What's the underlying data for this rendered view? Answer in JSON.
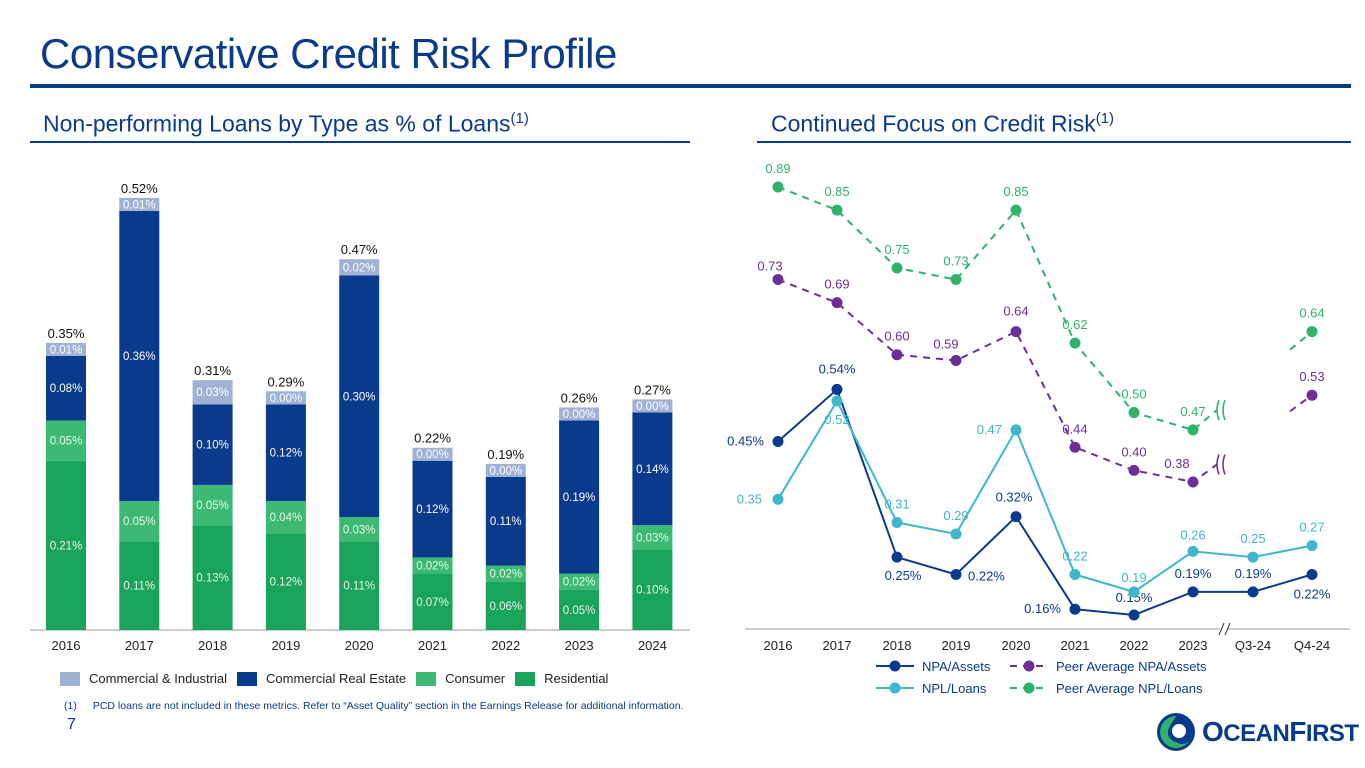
{
  "page": {
    "title": "Conservative Credit Risk Profile",
    "page_number": "7",
    "footnote_marker": "(1)",
    "footnote": "PCD loans are not included in these metrics. Refer to “Asset Quality” section in the Earnings Release for additional information.",
    "logo_text_a": "O",
    "logo_text_b": "CEAN",
    "logo_text_c": "F",
    "logo_text_d": "IRST"
  },
  "left_panel": {
    "title": "Non-performing Loans by Type as % of Loans",
    "title_sup": "(1)"
  },
  "right_panel": {
    "title": "Continued Focus on Credit Risk",
    "title_sup": "(1)"
  },
  "colors": {
    "commercial_industrial": "#9fb2d3",
    "commercial_real_estate": "#0a3a8c",
    "consumer": "#3cba74",
    "residential": "#1aa35a",
    "npa_assets": "#0a3a8c",
    "npl_loans": "#3fb6cc",
    "peer_npa": "#6c2f9a",
    "peer_npl": "#2fb36a"
  },
  "chart_data": [
    {
      "type": "bar",
      "stacked": true,
      "title": "Non-performing Loans by Type as % of Loans",
      "categories": [
        "2016",
        "2017",
        "2018",
        "2019",
        "2020",
        "2021",
        "2022",
        "2023",
        "2024"
      ],
      "series": [
        {
          "name": "Residential",
          "values": [
            0.21,
            0.11,
            0.13,
            0.12,
            0.11,
            0.07,
            0.06,
            0.05,
            0.1
          ],
          "labels": [
            "0.21%",
            "0.11%",
            "0.13%",
            "0.12%",
            "0.11%",
            "0.07%",
            "0.06%",
            "0.05%",
            "0.10%"
          ]
        },
        {
          "name": "Consumer",
          "values": [
            0.05,
            0.05,
            0.05,
            0.04,
            0.03,
            0.02,
            0.02,
            0.02,
            0.03
          ],
          "labels": [
            "0.05%",
            "0.05%",
            "0.05%",
            "0.04%",
            "0.03%",
            "0.02%",
            "0.02%",
            "0.02%",
            "0.03%"
          ]
        },
        {
          "name": "Commercial Real Estate",
          "values": [
            0.08,
            0.36,
            0.1,
            0.12,
            0.3,
            0.12,
            0.11,
            0.19,
            0.14
          ],
          "labels": [
            "0.08%",
            "0.36%",
            "0.10%",
            "0.12%",
            "0.30%",
            "0.12%",
            "0.11%",
            "0.19%",
            "0.14%"
          ]
        },
        {
          "name": "Commercial & Industrial",
          "values": [
            0.01,
            0.01,
            0.03,
            0.0,
            0.02,
            0.0,
            0.0,
            0.0,
            0.0
          ],
          "labels": [
            "0.01%",
            "0.01%",
            "0.03%",
            "0.00%",
            "0.02%",
            "0.00%",
            "0.00%",
            "0.00%",
            "0.00%"
          ]
        }
      ],
      "totals": [
        "0.35%",
        "0.52%",
        "0.31%",
        "0.29%",
        "0.47%",
        "0.22%",
        "0.19%",
        "0.26%",
        "0.27%"
      ],
      "legend_order": [
        "Commercial & Industrial",
        "Commercial Real Estate",
        "Consumer",
        "Residential"
      ],
      "ylim": [
        0,
        0.6
      ]
    },
    {
      "type": "line",
      "title": "Continued Focus on Credit Risk",
      "categories": [
        "2016",
        "2017",
        "2018",
        "2019",
        "2020",
        "2021",
        "2022",
        "2023",
        "Q3-24",
        "Q4-24"
      ],
      "axis_break_after": "2023",
      "series": [
        {
          "name": "NPA/Assets",
          "dashed": false,
          "values": [
            0.45,
            0.54,
            0.25,
            0.22,
            0.32,
            0.16,
            0.15,
            0.19,
            0.19,
            0.22
          ],
          "labels": [
            "0.45%",
            "0.54%",
            "0.25%",
            "0.22%",
            "0.32%",
            "0.16%",
            "0.15%",
            "0.19%",
            "0.19%",
            "0.22%"
          ]
        },
        {
          "name": "NPL/Loans",
          "dashed": false,
          "values": [
            0.35,
            0.52,
            0.31,
            0.29,
            0.47,
            0.22,
            0.19,
            0.26,
            0.25,
            0.27
          ],
          "labels": [
            "0.35",
            "0.52",
            "0.31",
            "0.29",
            "0.47",
            "0.22",
            "0.19",
            "0.26",
            "0.25",
            "0.27"
          ]
        },
        {
          "name": "Peer Average NPA/Assets",
          "dashed": true,
          "values": [
            0.73,
            0.69,
            0.6,
            0.59,
            0.64,
            0.44,
            0.4,
            0.38,
            null,
            0.53
          ],
          "labels": [
            "0.73",
            "0.69",
            "0.60",
            "0.59",
            "0.64",
            "0.44",
            "0.40",
            "0.38",
            "",
            "0.53"
          ]
        },
        {
          "name": "Peer Average NPL/Loans",
          "dashed": true,
          "values": [
            0.89,
            0.85,
            0.75,
            0.73,
            0.85,
            0.62,
            0.5,
            0.47,
            null,
            0.64
          ],
          "labels": [
            "0.89",
            "0.85",
            "0.75",
            "0.73",
            "0.85",
            "0.62",
            "0.50",
            "0.47",
            "",
            "0.64"
          ]
        }
      ]
    }
  ]
}
